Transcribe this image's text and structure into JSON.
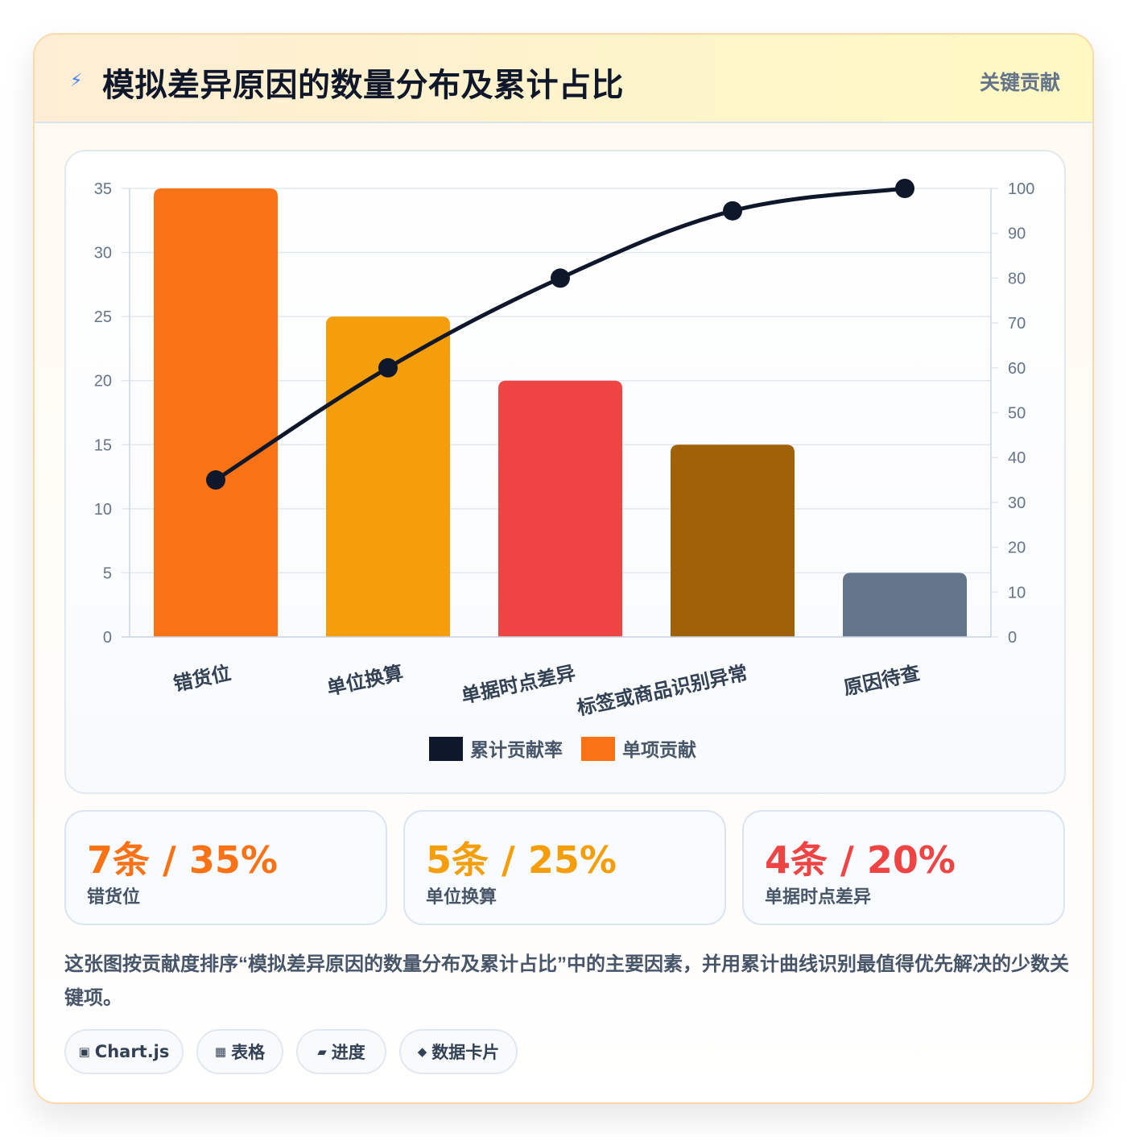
{
  "header": {
    "icon": "lightning-icon",
    "icon_glyph": "⚡",
    "title": "模拟差异原因的数量分布及累计占比",
    "tag": "关键贡献"
  },
  "chart_data": {
    "type": "bar",
    "categories": [
      "错货位",
      "单位换算",
      "单据时点差异",
      "标签或商品识别异常",
      "原因待查"
    ],
    "series": [
      {
        "name": "单项贡献",
        "type": "bar",
        "axis": "left",
        "values": [
          35,
          25,
          20,
          15,
          5
        ],
        "colors": [
          "#f97316",
          "#f59e0b",
          "#ef4444",
          "#a16207",
          "#64748b"
        ]
      },
      {
        "name": "累计贡献率",
        "type": "line",
        "axis": "right",
        "values": [
          35,
          60,
          80,
          95,
          100
        ],
        "color": "#0f172a"
      }
    ],
    "yleft": {
      "min": 0,
      "max": 35,
      "step": 5
    },
    "yright": {
      "min": 0,
      "max": 100,
      "step": 10
    },
    "grid": true,
    "legend_position": "bottom",
    "legend": [
      {
        "label": "累计贡献率",
        "color": "#0f172a"
      },
      {
        "label": "单项贡献",
        "color": "#f97316"
      }
    ]
  },
  "stats": [
    {
      "value": "7条 / 35%",
      "label": "错货位",
      "color": "#f97316"
    },
    {
      "value": "5条 / 25%",
      "label": "单位换算",
      "color": "#f59e0b"
    },
    {
      "value": "4条 / 20%",
      "label": "单据时点差异",
      "color": "#ef4444"
    }
  ],
  "description": "这张图按贡献度排序“模拟差异原因的数量分布及累计占比”中的主要因素，并用累计曲线识别最值得优先解决的少数关键项。",
  "chips": [
    {
      "icon": "chart-icon",
      "glyph": "▣",
      "label": "Chart.js"
    },
    {
      "icon": "table-icon",
      "glyph": "▦",
      "label": "表格"
    },
    {
      "icon": "progress-icon",
      "glyph": "▰",
      "label": "进度"
    },
    {
      "icon": "diamond-icon",
      "glyph": "◆",
      "label": "数据卡片"
    }
  ]
}
